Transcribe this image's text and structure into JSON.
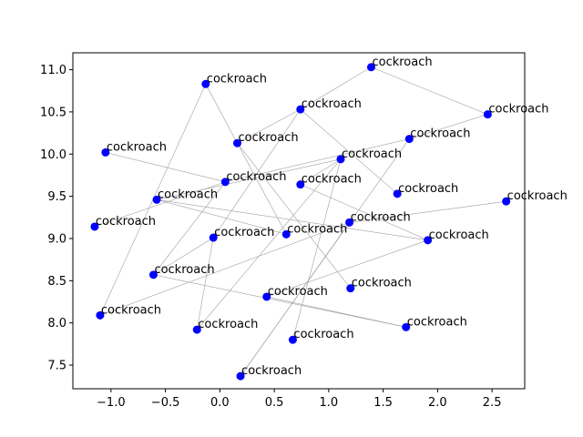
{
  "chart_data": {
    "type": "scatter",
    "title": "",
    "xlabel": "",
    "ylabel": "",
    "xlim": [
      -1.35,
      2.8
    ],
    "ylim": [
      7.22,
      11.2
    ],
    "x_ticks": [
      -1.0,
      -0.5,
      0.0,
      0.5,
      1.0,
      1.5,
      2.0,
      2.5
    ],
    "x_tick_labels": [
      "−1.0",
      "−0.5",
      "0.0",
      "0.5",
      "1.0",
      "1.5",
      "2.0",
      "2.5"
    ],
    "y_ticks": [
      7.5,
      8.0,
      8.5,
      9.0,
      9.5,
      10.0,
      10.5,
      11.0
    ],
    "y_tick_labels": [
      "7.5",
      "8.0",
      "8.5",
      "9.0",
      "9.5",
      "10.0",
      "10.5",
      "11.0"
    ],
    "grid": false,
    "point_color": "#0000ff",
    "edge_color": "#a0a0a0",
    "points": [
      {
        "x": 1.39,
        "y": 11.03,
        "label": "cockroach"
      },
      {
        "x": -0.13,
        "y": 10.83,
        "label": "cockroach"
      },
      {
        "x": 0.74,
        "y": 10.53,
        "label": "cockroach"
      },
      {
        "x": 2.46,
        "y": 10.47,
        "label": "cockroach"
      },
      {
        "x": 0.16,
        "y": 10.13,
        "label": "cockroach"
      },
      {
        "x": 1.74,
        "y": 10.18,
        "label": "cockroach"
      },
      {
        "x": -1.05,
        "y": 10.02,
        "label": "cockroach"
      },
      {
        "x": 1.11,
        "y": 9.94,
        "label": "cockroach"
      },
      {
        "x": 0.05,
        "y": 9.67,
        "label": "cockroach"
      },
      {
        "x": 0.74,
        "y": 9.64,
        "label": "cockroach"
      },
      {
        "x": 1.63,
        "y": 9.53,
        "label": "cockroach"
      },
      {
        "x": -0.58,
        "y": 9.46,
        "label": "cockroach"
      },
      {
        "x": 2.63,
        "y": 9.44,
        "label": "cockroach"
      },
      {
        "x": -1.15,
        "y": 9.14,
        "label": "cockroach"
      },
      {
        "x": 1.19,
        "y": 9.19,
        "label": "cockroach"
      },
      {
        "x": 0.61,
        "y": 9.05,
        "label": "cockroach"
      },
      {
        "x": -0.06,
        "y": 9.01,
        "label": "cockroach"
      },
      {
        "x": 1.91,
        "y": 8.98,
        "label": "cockroach"
      },
      {
        "x": -0.61,
        "y": 8.57,
        "label": "cockroach"
      },
      {
        "x": 1.2,
        "y": 8.41,
        "label": "cockroach"
      },
      {
        "x": 0.43,
        "y": 8.31,
        "label": "cockroach"
      },
      {
        "x": -1.1,
        "y": 8.09,
        "label": "cockroach"
      },
      {
        "x": 1.71,
        "y": 7.95,
        "label": "cockroach"
      },
      {
        "x": -0.21,
        "y": 7.92,
        "label": "cockroach"
      },
      {
        "x": 0.67,
        "y": 7.8,
        "label": "cockroach"
      },
      {
        "x": 0.19,
        "y": 7.37,
        "label": "cockroach"
      }
    ],
    "edges": [
      [
        0,
        2
      ],
      [
        0,
        3
      ],
      [
        3,
        5
      ],
      [
        5,
        8
      ],
      [
        2,
        4
      ],
      [
        4,
        19
      ],
      [
        1,
        4
      ],
      [
        4,
        15
      ],
      [
        1,
        21
      ],
      [
        6,
        8
      ],
      [
        8,
        18
      ],
      [
        8,
        13
      ],
      [
        2,
        10
      ],
      [
        7,
        11
      ],
      [
        7,
        24
      ],
      [
        7,
        23
      ],
      [
        7,
        9
      ],
      [
        9,
        17
      ],
      [
        11,
        15
      ],
      [
        11,
        17
      ],
      [
        14,
        12
      ],
      [
        14,
        21
      ],
      [
        14,
        25
      ],
      [
        5,
        25
      ],
      [
        16,
        23
      ],
      [
        16,
        18
      ],
      [
        16,
        2
      ],
      [
        18,
        22
      ],
      [
        17,
        20
      ],
      [
        20,
        22
      ]
    ]
  }
}
